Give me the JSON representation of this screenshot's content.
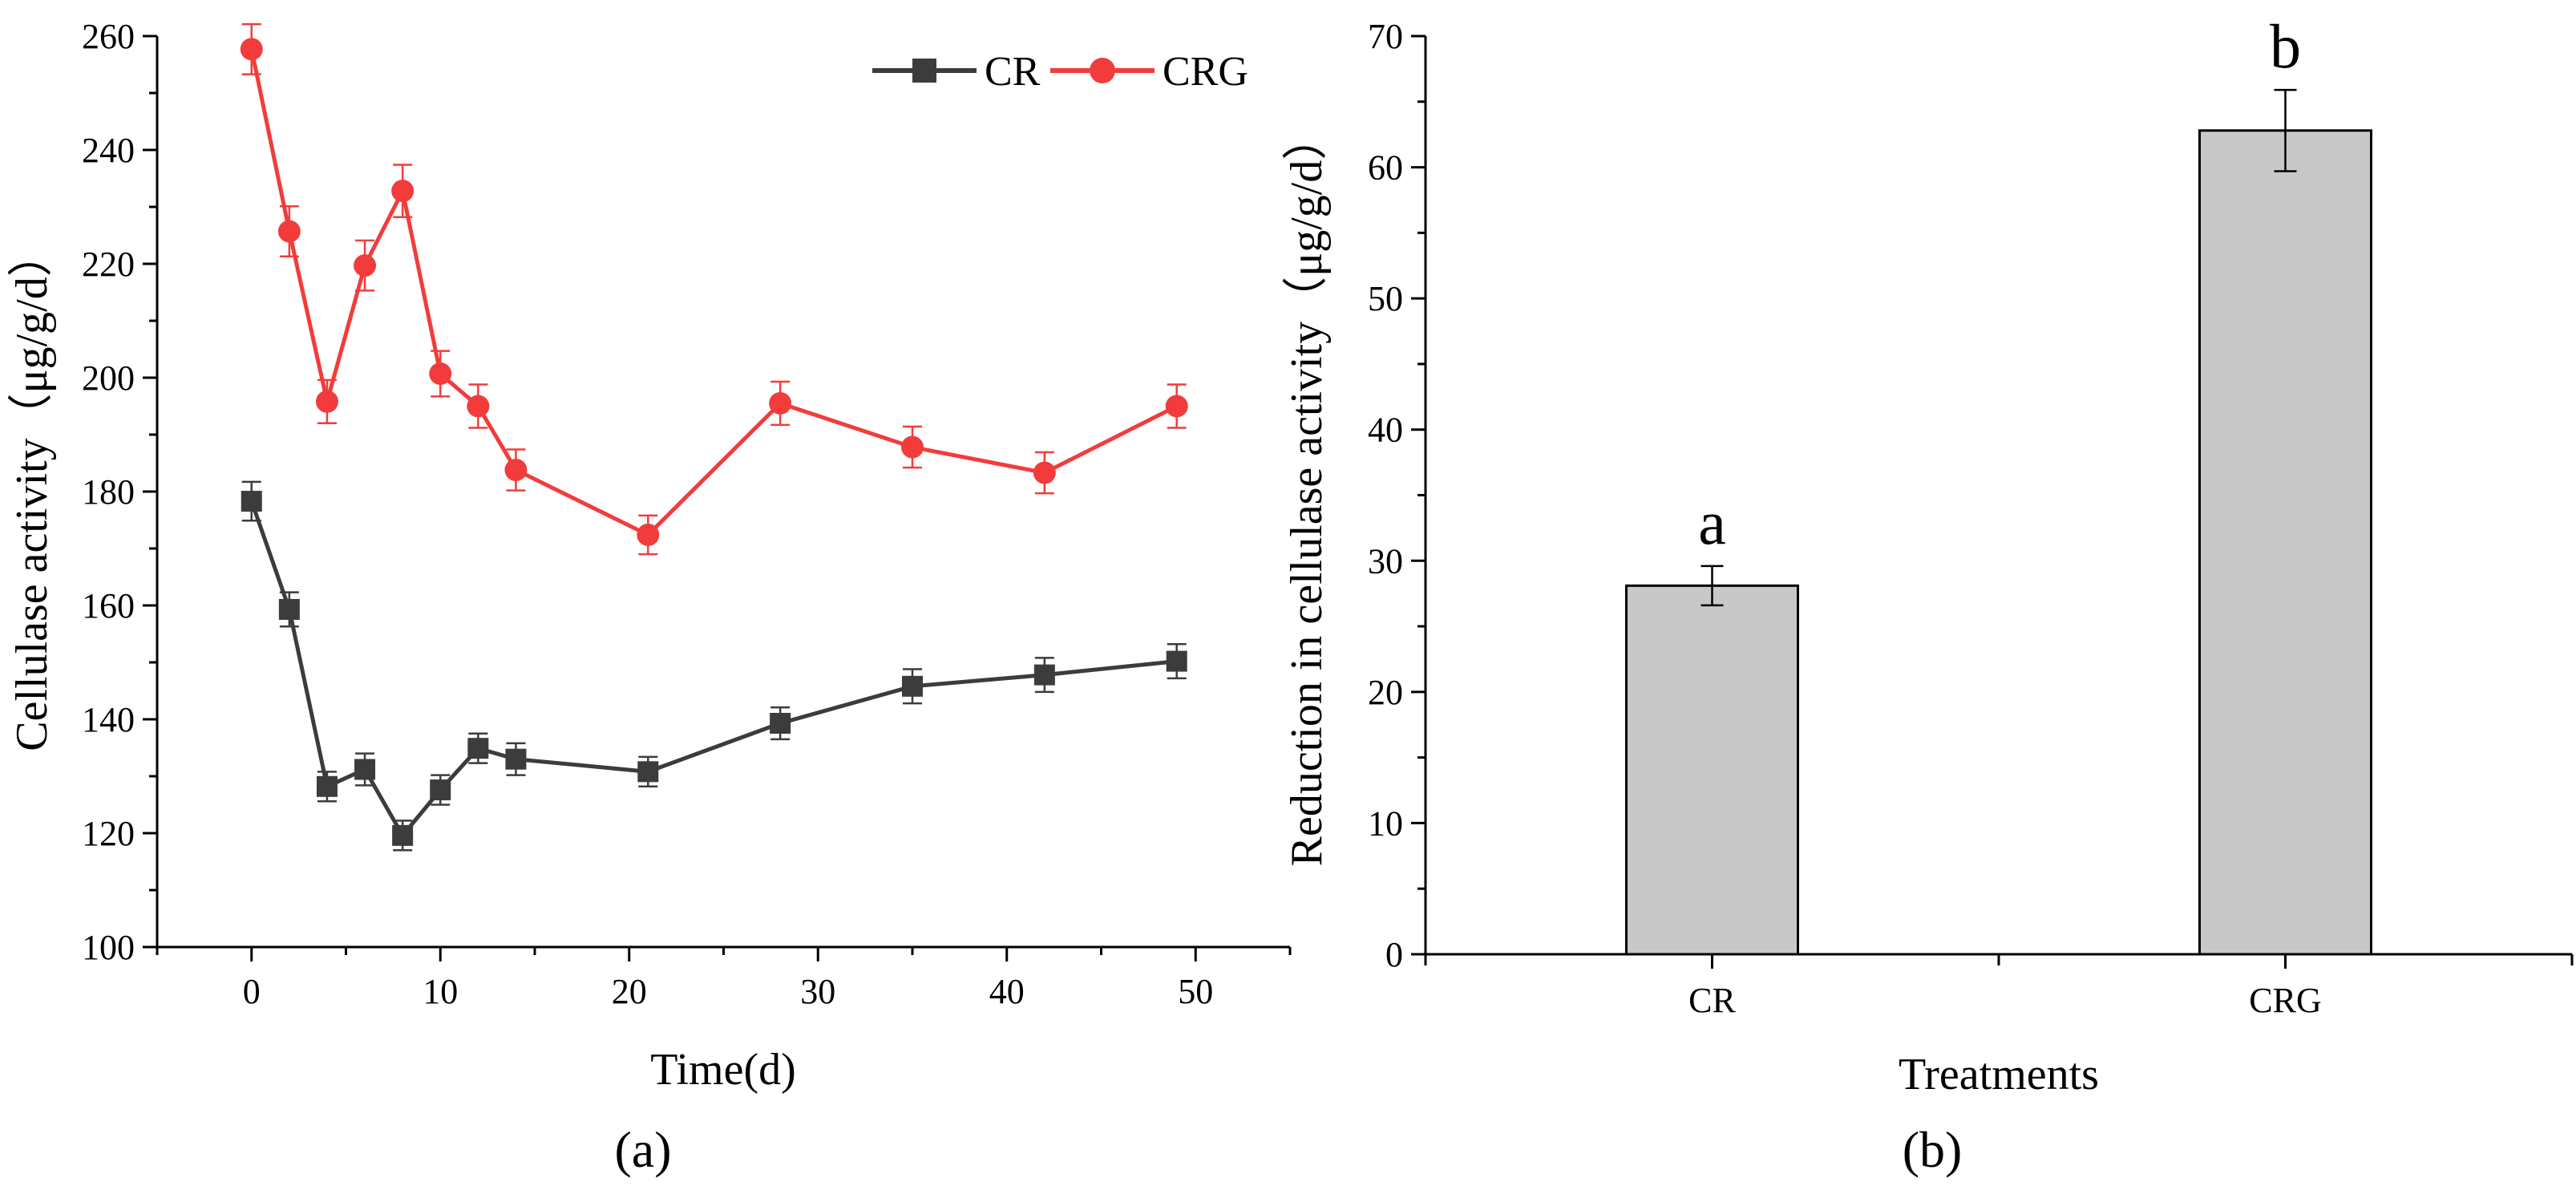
{
  "panels": {
    "a_label": "(a)",
    "b_label": "(b)"
  },
  "chart_data": [
    {
      "type": "line",
      "title": "",
      "xlabel": "Time(d)",
      "ylabel": "Cellulase activity（μg/g/d）",
      "xlim": [
        -5,
        55
      ],
      "ylim": [
        100,
        260
      ],
      "xticks": [
        0,
        10,
        20,
        30,
        40,
        50
      ],
      "yticks": [
        100,
        120,
        140,
        160,
        180,
        200,
        220,
        240,
        260
      ],
      "grid": false,
      "legend_position": "top-right",
      "x": [
        0,
        2,
        4,
        6,
        8,
        10,
        12,
        14,
        21,
        28,
        35,
        42,
        49
      ],
      "series": [
        {
          "name": "CR",
          "color": "#3c3c3c",
          "marker": "square",
          "values": [
            178.3,
            159.3,
            128.2,
            131.2,
            119.6,
            127.6,
            134.9,
            133.0,
            130.8,
            139.3,
            145.8,
            147.8,
            150.2
          ],
          "errors": [
            3.4,
            3.0,
            2.6,
            2.8,
            2.6,
            2.6,
            2.6,
            2.8,
            2.6,
            2.8,
            3.0,
            3.0,
            3.0
          ]
        },
        {
          "name": "CRG",
          "color": "#f23c3c",
          "marker": "circle",
          "values": [
            257.7,
            225.7,
            195.8,
            219.7,
            232.8,
            200.7,
            195.0,
            183.8,
            172.4,
            195.5,
            187.8,
            183.3,
            195.0
          ],
          "errors": [
            4.4,
            4.4,
            3.8,
            4.4,
            4.6,
            4.0,
            3.8,
            3.6,
            3.4,
            3.8,
            3.6,
            3.6,
            3.8
          ]
        }
      ]
    },
    {
      "type": "bar",
      "title": "",
      "xlabel": "Treatments",
      "ylabel": "Reduction in cellulase activity（μg/g/d）",
      "ylim": [
        0,
        70
      ],
      "yticks": [
        0,
        10,
        20,
        30,
        40,
        50,
        60,
        70
      ],
      "grid": false,
      "categories": [
        "CR",
        "CRG"
      ],
      "values": [
        28.1,
        62.8
      ],
      "errors": [
        1.5,
        3.1
      ],
      "significance": [
        "a",
        "b"
      ],
      "bar_color": "#c8c8c8"
    }
  ]
}
